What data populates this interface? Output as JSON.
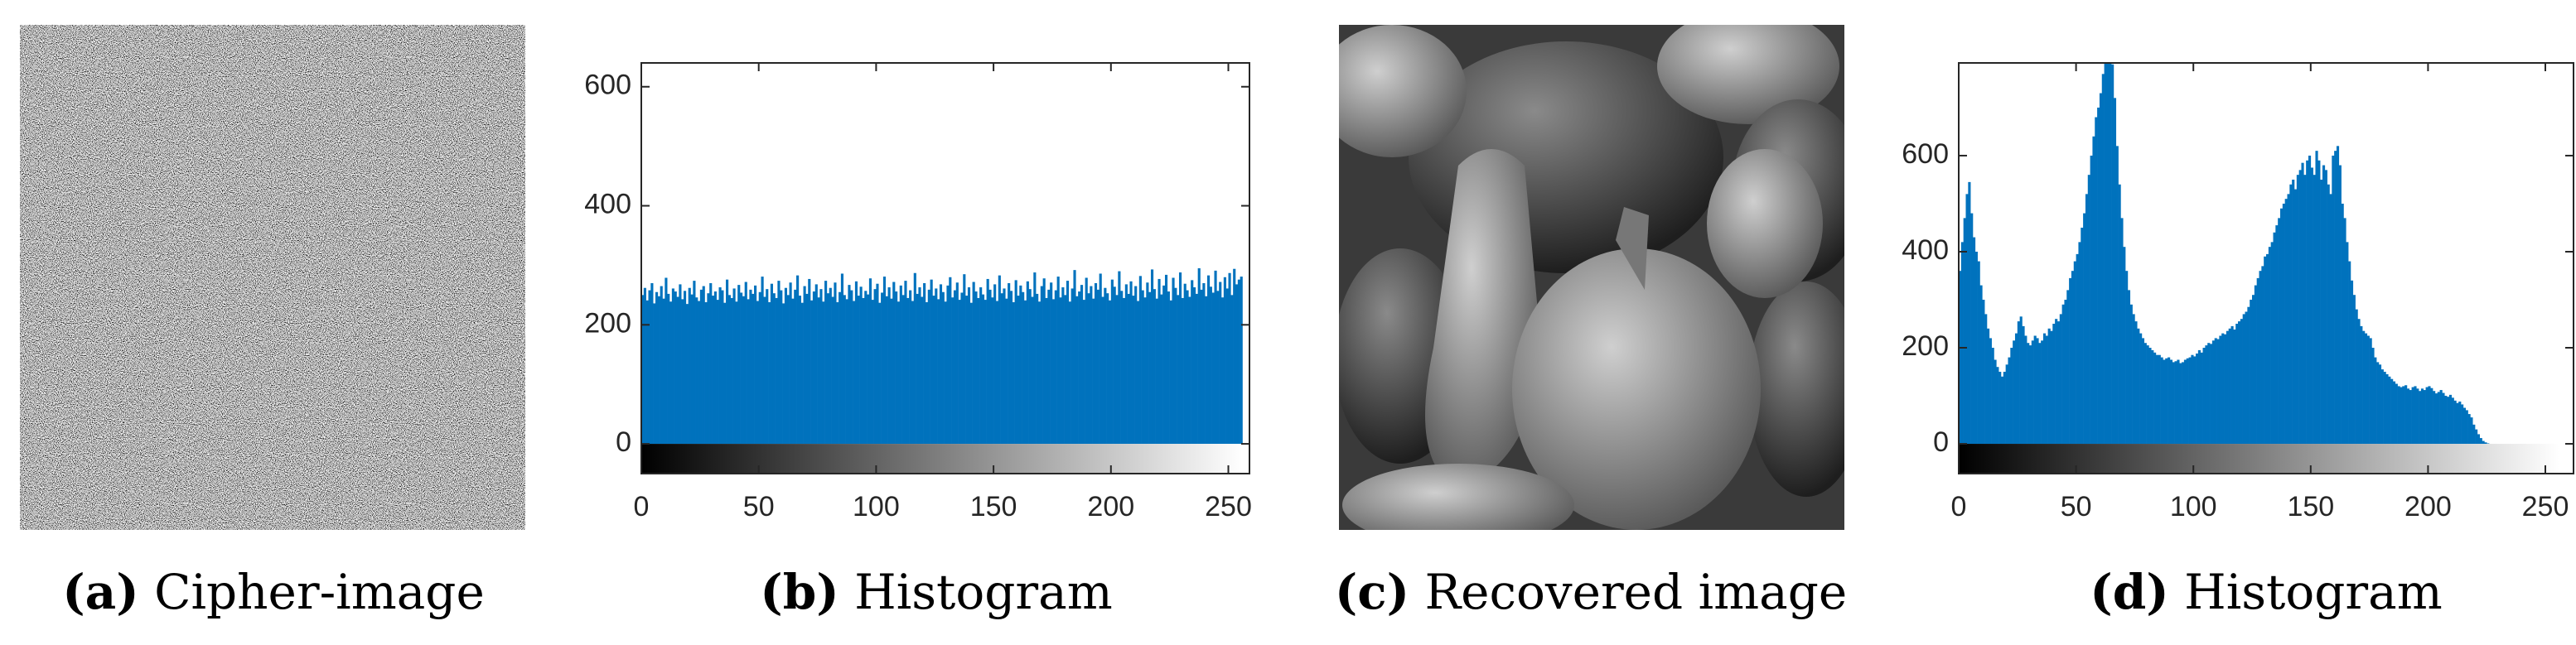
{
  "captions": [
    {
      "label": "(a)",
      "text": "Cipher-image"
    },
    {
      "label": "(b)",
      "text": "Histogram"
    },
    {
      "label": "(c)",
      "text": "Recovered image"
    },
    {
      "label": "(d)",
      "text": "Histogram"
    }
  ],
  "chart_data": [
    {
      "type": "histogram",
      "color": "#0072bd",
      "xlim": [
        0,
        259
      ],
      "ylim": [
        -50,
        640
      ],
      "xticks": [
        0,
        50,
        100,
        150,
        200,
        250
      ],
      "yticks": [
        0,
        200,
        400,
        600
      ],
      "bins": [
        0,
        1,
        2,
        3,
        4,
        5,
        6,
        7,
        8,
        9,
        10,
        11,
        12,
        13,
        14,
        15,
        16,
        17,
        18,
        19,
        20,
        21,
        22,
        23,
        24,
        25,
        26,
        27,
        28,
        29,
        30,
        31,
        32,
        33,
        34,
        35,
        36,
        37,
        38,
        39,
        40,
        41,
        42,
        43,
        44,
        45,
        46,
        47,
        48,
        49,
        50,
        51,
        52,
        53,
        54,
        55,
        56,
        57,
        58,
        59,
        60,
        61,
        62,
        63,
        64,
        65,
        66,
        67,
        68,
        69,
        70,
        71,
        72,
        73,
        74,
        75,
        76,
        77,
        78,
        79,
        80,
        81,
        82,
        83,
        84,
        85,
        86,
        87,
        88,
        89,
        90,
        91,
        92,
        93,
        94,
        95,
        96,
        97,
        98,
        99,
        100,
        101,
        102,
        103,
        104,
        105,
        106,
        107,
        108,
        109,
        110,
        111,
        112,
        113,
        114,
        115,
        116,
        117,
        118,
        119,
        120,
        121,
        122,
        123,
        124,
        125,
        126,
        127,
        128,
        129,
        130,
        131,
        132,
        133,
        134,
        135,
        136,
        137,
        138,
        139,
        140,
        141,
        142,
        143,
        144,
        145,
        146,
        147,
        148,
        149,
        150,
        151,
        152,
        153,
        154,
        155,
        156,
        157,
        158,
        159,
        160,
        161,
        162,
        163,
        164,
        165,
        166,
        167,
        168,
        169,
        170,
        171,
        172,
        173,
        174,
        175,
        176,
        177,
        178,
        179,
        180,
        181,
        182,
        183,
        184,
        185,
        186,
        187,
        188,
        189,
        190,
        191,
        192,
        193,
        194,
        195,
        196,
        197,
        198,
        199,
        200,
        201,
        202,
        203,
        204,
        205,
        206,
        207,
        208,
        209,
        210,
        211,
        212,
        213,
        214,
        215,
        216,
        217,
        218,
        219,
        220,
        221,
        222,
        223,
        224,
        225,
        226,
        227,
        228,
        229,
        230,
        231,
        232,
        233,
        234,
        235,
        236,
        237,
        238,
        239,
        240,
        241,
        242,
        243,
        244,
        245,
        246,
        247,
        248,
        249,
        250,
        251,
        252,
        253,
        254,
        255,
        256
      ],
      "values": [
        250,
        262,
        241,
        258,
        270,
        236,
        255,
        248,
        265,
        244,
        279,
        252,
        239,
        261,
        256,
        247,
        268,
        243,
        257,
        235,
        262,
        251,
        274,
        246,
        240,
        259,
        265,
        238,
        253,
        270,
        249,
        256,
        242,
        263,
        258,
        237,
        276,
        250,
        245,
        261,
        239,
        267,
        254,
        248,
        272,
        243,
        259,
        252,
        266,
        240,
        255,
        281,
        247,
        260,
        238,
        269,
        253,
        245,
        274,
        258,
        236,
        262,
        250,
        271,
        244,
        259,
        283,
        249,
        237,
        265,
        252,
        277,
        241,
        256,
        268,
        246,
        260,
        239,
        274,
        253,
        262,
        247,
        271,
        238,
        255,
        286,
        250,
        243,
        267,
        258,
        240,
        273,
        249,
        264,
        245,
        257,
        251,
        278,
        242,
        260,
        269,
        237,
        254,
        281,
        248,
        263,
        244,
        272,
        256,
        239,
        266,
        250,
        274,
        245,
        258,
        240,
        287,
        252,
        263,
        247,
        270,
        238,
        259,
        276,
        249,
        261,
        243,
        268,
        255,
        239,
        266,
        280,
        246,
        258,
        271,
        242,
        254,
        285,
        249,
        263,
        237,
        272,
        256,
        245,
        263,
        251,
        242,
        277,
        259,
        246,
        268,
        240,
        283,
        253,
        261,
        244,
        270,
        257,
        238,
        275,
        249,
        266,
        255,
        241,
        273,
        260,
        247,
        288,
        252,
        239,
        265,
        278,
        245,
        259,
        271,
        243,
        258,
        281,
        246,
        263,
        250,
        274,
        239,
        261,
        292,
        248,
        256,
        267,
        242,
        279,
        253,
        265,
        244,
        270,
        259,
        286,
        247,
        262,
        253,
        241,
        276,
        264,
        250,
        290,
        257,
        245,
        268,
        252,
        273,
        249,
        265,
        240,
        282,
        258,
        246,
        271,
        255,
        293,
        260,
        244,
        277,
        251,
        266,
        284,
        256,
        241,
        279,
        262,
        250,
        288,
        245,
        269,
        258,
        247,
        275,
        263,
        252,
        295,
        259,
        270,
        248,
        283,
        264,
        254,
        291,
        257,
        272,
        246,
        280,
        261,
        287,
        250,
        294,
        268,
        276,
        281
      ]
    },
    {
      "type": "histogram",
      "color": "#0072bd",
      "xlim": [
        0,
        262
      ],
      "ylim": [
        -62,
        793
      ],
      "xticks": [
        0,
        50,
        100,
        150,
        200,
        250
      ],
      "yticks": [
        0,
        200,
        400,
        600
      ],
      "bins": [
        0,
        1,
        2,
        3,
        4,
        5,
        6,
        7,
        8,
        9,
        10,
        11,
        12,
        13,
        14,
        15,
        16,
        17,
        18,
        19,
        20,
        21,
        22,
        23,
        24,
        25,
        26,
        27,
        28,
        29,
        30,
        31,
        32,
        33,
        34,
        35,
        36,
        37,
        38,
        39,
        40,
        41,
        42,
        43,
        44,
        45,
        46,
        47,
        48,
        49,
        50,
        51,
        52,
        53,
        54,
        55,
        56,
        57,
        58,
        59,
        60,
        61,
        62,
        63,
        64,
        65,
        66,
        67,
        68,
        69,
        70,
        71,
        72,
        73,
        74,
        75,
        76,
        77,
        78,
        79,
        80,
        81,
        82,
        83,
        84,
        85,
        86,
        87,
        88,
        89,
        90,
        91,
        92,
        93,
        94,
        95,
        96,
        97,
        98,
        99,
        100,
        101,
        102,
        103,
        104,
        105,
        106,
        107,
        108,
        109,
        110,
        111,
        112,
        113,
        114,
        115,
        116,
        117,
        118,
        119,
        120,
        121,
        122,
        123,
        124,
        125,
        126,
        127,
        128,
        129,
        130,
        131,
        132,
        133,
        134,
        135,
        136,
        137,
        138,
        139,
        140,
        141,
        142,
        143,
        144,
        145,
        146,
        147,
        148,
        149,
        150,
        151,
        152,
        153,
        154,
        155,
        156,
        157,
        158,
        159,
        160,
        161,
        162,
        163,
        164,
        165,
        166,
        167,
        168,
        169,
        170,
        171,
        172,
        173,
        174,
        175,
        176,
        177,
        178,
        179,
        180,
        181,
        182,
        183,
        184,
        185,
        186,
        187,
        188,
        189,
        190,
        191,
        192,
        193,
        194,
        195,
        196,
        197,
        198,
        199,
        200,
        201,
        202,
        203,
        204,
        205,
        206,
        207,
        208,
        209,
        210,
        211,
        212,
        213,
        214,
        215,
        216,
        217,
        218,
        219,
        220,
        221,
        222,
        223,
        224,
        225,
        226,
        227,
        228,
        229,
        230,
        231,
        232,
        233,
        234,
        235,
        236,
        237,
        238,
        239,
        240,
        241,
        242,
        243,
        244,
        245,
        246,
        247,
        248,
        249,
        250,
        251,
        252,
        253,
        254,
        255,
        256
      ],
      "values": [
        360,
        420,
        470,
        520,
        545,
        480,
        430,
        400,
        380,
        330,
        300,
        270,
        240,
        220,
        200,
        175,
        160,
        150,
        140,
        150,
        165,
        180,
        200,
        215,
        230,
        255,
        265,
        245,
        225,
        210,
        205,
        215,
        225,
        220,
        210,
        215,
        230,
        225,
        240,
        235,
        250,
        260,
        255,
        270,
        290,
        300,
        320,
        345,
        360,
        380,
        395,
        420,
        450,
        480,
        520,
        560,
        600,
        640,
        680,
        700,
        730,
        770,
        800,
        800,
        800,
        790,
        720,
        620,
        540,
        470,
        410,
        360,
        320,
        290,
        270,
        255,
        240,
        230,
        220,
        210,
        205,
        200,
        195,
        190,
        185,
        185,
        180,
        175,
        178,
        180,
        175,
        170,
        172,
        175,
        168,
        170,
        175,
        178,
        180,
        185,
        182,
        188,
        195,
        190,
        200,
        205,
        210,
        208,
        215,
        220,
        218,
        225,
        230,
        228,
        235,
        240,
        245,
        238,
        250,
        255,
        260,
        270,
        275,
        285,
        300,
        310,
        330,
        345,
        360,
        370,
        390,
        395,
        410,
        420,
        440,
        455,
        470,
        490,
        500,
        510,
        520,
        540,
        550,
        530,
        560,
        570,
        585,
        560,
        590,
        600,
        575,
        560,
        610,
        590,
        550,
        580,
        570,
        540,
        520,
        600,
        610,
        620,
        580,
        500,
        470,
        420,
        380,
        340,
        310,
        280,
        260,
        245,
        235,
        230,
        225,
        220,
        200,
        180,
        170,
        165,
        155,
        150,
        145,
        140,
        135,
        130,
        125,
        120,
        118,
        120,
        122,
        115,
        112,
        118,
        120,
        115,
        110,
        115,
        112,
        118,
        120,
        116,
        110,
        105,
        108,
        112,
        106,
        100,
        98,
        102,
        96,
        90,
        85,
        88,
        82,
        75,
        70,
        62,
        55,
        40,
        30,
        20,
        12,
        6,
        3,
        1,
        0,
        0,
        0,
        0,
        0,
        0,
        0,
        0,
        0,
        0,
        0,
        0,
        0,
        0,
        0,
        0,
        0,
        0,
        0,
        0,
        0,
        0,
        0,
        0,
        0,
        0,
        0,
        0,
        0,
        0
      ]
    }
  ]
}
